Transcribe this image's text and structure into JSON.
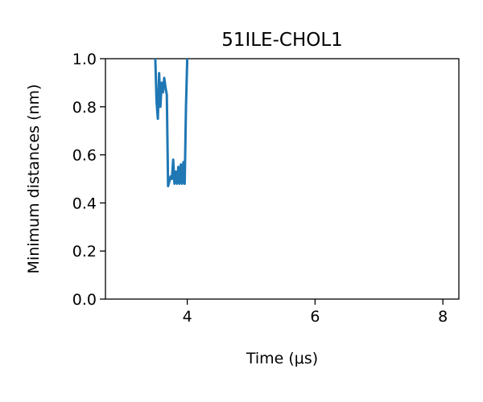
{
  "chart_data": {
    "type": "line",
    "title": "51ILE-CHOL1",
    "xlabel": "Time (μs)",
    "ylabel": "Minimum distances (nm)",
    "xlim": [
      2.72,
      8.25
    ],
    "ylim": [
      0.0,
      1.0
    ],
    "x_ticks": [
      4,
      6,
      8
    ],
    "x_tick_labels": [
      "4",
      "6",
      "8"
    ],
    "y_ticks": [
      0.0,
      0.2,
      0.4,
      0.6,
      0.8,
      1.0
    ],
    "y_tick_labels": [
      "0.0",
      "0.2",
      "0.4",
      "0.6",
      "0.8",
      "1.0"
    ],
    "grid": false,
    "series": [
      {
        "color": "#1f77b4",
        "x": [
          3.5,
          3.52,
          3.54,
          3.56,
          3.58,
          3.6,
          3.62,
          3.64,
          3.66,
          3.68,
          3.7,
          3.72,
          3.74,
          3.76,
          3.78,
          3.8,
          3.82,
          3.84,
          3.86,
          3.88,
          3.9,
          3.92,
          3.94,
          3.96,
          3.98,
          4.0
        ],
        "y": [
          1.0,
          0.82,
          0.75,
          0.94,
          0.8,
          0.9,
          0.86,
          0.92,
          0.88,
          0.85,
          0.47,
          0.49,
          0.51,
          0.5,
          0.58,
          0.48,
          0.53,
          0.48,
          0.55,
          0.48,
          0.56,
          0.48,
          0.57,
          0.48,
          0.8,
          1.0
        ]
      }
    ]
  }
}
